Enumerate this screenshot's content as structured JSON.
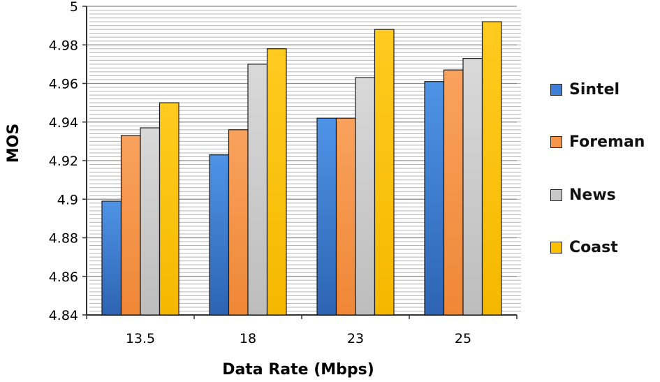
{
  "chart_data": {
    "type": "bar",
    "title": "",
    "xlabel": "Data Rate (Mbps)",
    "ylabel": "MOS",
    "categories": [
      "13.5",
      "18",
      "23",
      "25"
    ],
    "ylim": [
      4.84,
      5.0
    ],
    "yticks": [
      "4.84",
      "4.86",
      "4.88",
      "4.9",
      "4.92",
      "4.94",
      "4.96",
      "4.98",
      "5"
    ],
    "grid": true,
    "legend_position": "right",
    "series": [
      {
        "name": "Sintel",
        "color": "#3d7fd6",
        "values": [
          4.899,
          4.923,
          4.942,
          4.961
        ]
      },
      {
        "name": "Foreman",
        "color": "#f7964a",
        "values": [
          4.933,
          4.936,
          4.942,
          4.967
        ]
      },
      {
        "name": "News",
        "color": "#c8c8c8",
        "values": [
          4.937,
          4.97,
          4.963,
          4.973
        ]
      },
      {
        "name": "Coast",
        "color": "#ffc000",
        "values": [
          4.95,
          4.978,
          4.988,
          4.992
        ]
      }
    ]
  }
}
